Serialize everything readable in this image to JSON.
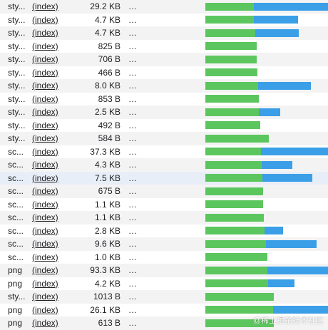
{
  "colors": {
    "ttfb": "#5cc65e",
    "download": "#3b9fe8",
    "row_even": "#f3f3f3",
    "row_selected": "#e8eef7"
  },
  "requests": [
    {
      "type": "sty...",
      "initiator": "(index)",
      "size": "29.2 KB",
      "time": "…",
      "wait": 68,
      "download": 104
    },
    {
      "type": "sty...",
      "initiator": "(index)",
      "size": "4.7 KB",
      "time": "…",
      "wait": 68,
      "download": 62
    },
    {
      "type": "sty...",
      "initiator": "(index)",
      "size": "4.7 KB",
      "time": "…",
      "wait": 70,
      "download": 61
    },
    {
      "type": "sty...",
      "initiator": "(index)",
      "size": "825 B",
      "time": "…",
      "wait": 72,
      "download": 0
    },
    {
      "type": "sty...",
      "initiator": "(index)",
      "size": "706 B",
      "time": "…",
      "wait": 72,
      "download": 0
    },
    {
      "type": "sty...",
      "initiator": "(index)",
      "size": "466 B",
      "time": "…",
      "wait": 73,
      "download": 0
    },
    {
      "type": "sty...",
      "initiator": "(index)",
      "size": "8.0 KB",
      "time": "…",
      "wait": 74,
      "download": 74
    },
    {
      "type": "sty...",
      "initiator": "(index)",
      "size": "853 B",
      "time": "…",
      "wait": 75,
      "download": 0
    },
    {
      "type": "sty...",
      "initiator": "(index)",
      "size": "2.5 KB",
      "time": "…",
      "wait": 75,
      "download": 30
    },
    {
      "type": "sty...",
      "initiator": "(index)",
      "size": "492 B",
      "time": "…",
      "wait": 77,
      "download": 0
    },
    {
      "type": "sty...",
      "initiator": "(index)",
      "size": "584 B",
      "time": "…",
      "wait": 89,
      "download": 0
    },
    {
      "type": "sc...",
      "initiator": "(index)",
      "size": "37.3 KB",
      "time": "…",
      "wait": 78,
      "download": 94
    },
    {
      "type": "sc...",
      "initiator": "(index)",
      "size": "4.3 KB",
      "time": "…",
      "wait": 79,
      "download": 43
    },
    {
      "type": "sc...",
      "initiator": "(index)",
      "size": "7.5 KB",
      "time": "…",
      "wait": 80,
      "download": 70
    },
    {
      "type": "sc...",
      "initiator": "(index)",
      "size": "675 B",
      "time": "…",
      "wait": 81,
      "download": 0
    },
    {
      "type": "sc...",
      "initiator": "(index)",
      "size": "1.1 KB",
      "time": "…",
      "wait": 81,
      "download": 0
    },
    {
      "type": "sc...",
      "initiator": "(index)",
      "size": "1.1 KB",
      "time": "…",
      "wait": 82,
      "download": 0
    },
    {
      "type": "sc...",
      "initiator": "(index)",
      "size": "2.8 KB",
      "time": "…",
      "wait": 83,
      "download": 26
    },
    {
      "type": "sc...",
      "initiator": "(index)",
      "size": "9.6 KB",
      "time": "…",
      "wait": 85,
      "download": 71
    },
    {
      "type": "sc...",
      "initiator": "(index)",
      "size": "1.0 KB",
      "time": "…",
      "wait": 87,
      "download": 0
    },
    {
      "type": "png",
      "initiator": "(index)",
      "size": "93.3 KB",
      "time": "…",
      "wait": 87,
      "download": 85
    },
    {
      "type": "png",
      "initiator": "(index)",
      "size": "4.2 KB",
      "time": "…",
      "wait": 88,
      "download": 37
    },
    {
      "type": "sty...",
      "initiator": "(index)",
      "size": "1013 B",
      "time": "…",
      "wait": 96,
      "download": 0
    },
    {
      "type": "png",
      "initiator": "(index)",
      "size": "26.1 KB",
      "time": "…",
      "wait": 95,
      "download": 77
    },
    {
      "type": "png",
      "initiator": "(index)",
      "size": "613 B",
      "time": "…",
      "wait": 96,
      "download": 0
    }
  ],
  "watermark": "@稀土掘金技术社区"
}
